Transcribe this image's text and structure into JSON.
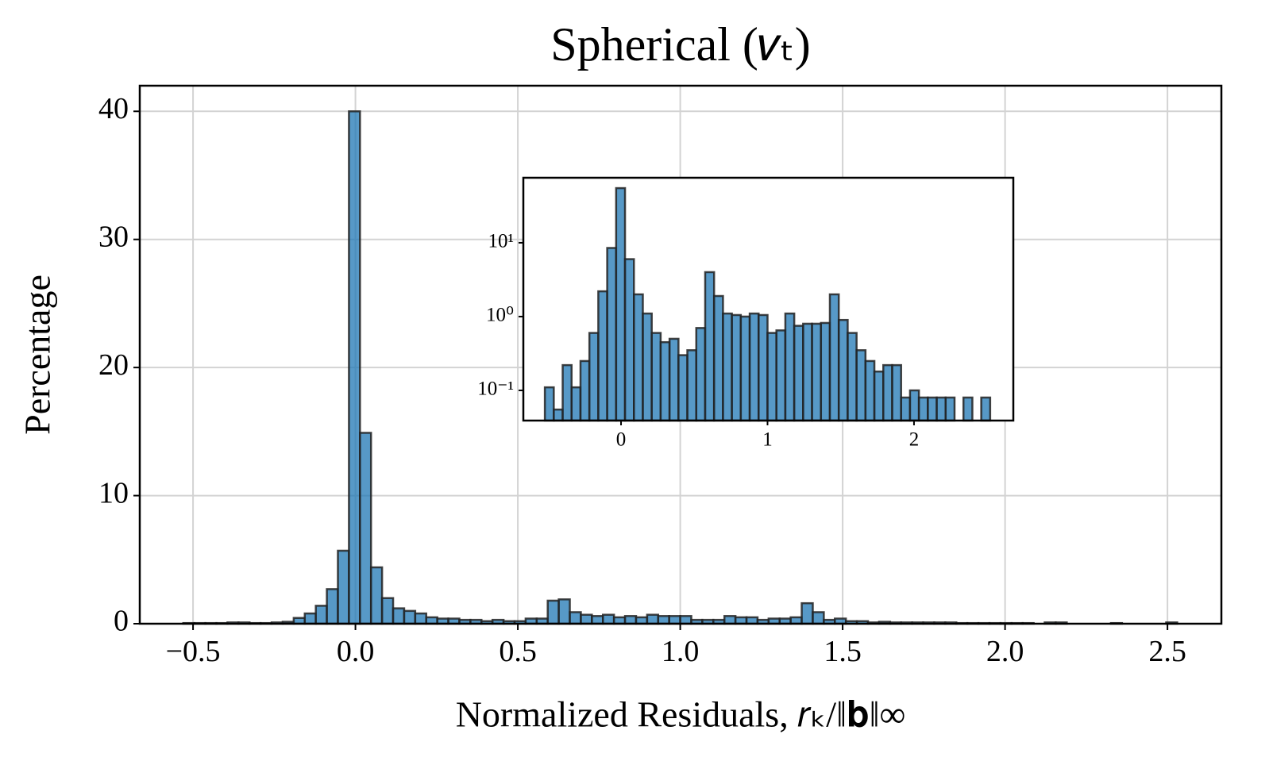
{
  "chart_data": [
    {
      "type": "histogram",
      "title": "Spherical (𝑣ₜ)",
      "xlabel": "Normalized Residuals, 𝑟ₖ/‖𝐛‖∞",
      "ylabel": "Percentage",
      "color": "#1f77b4",
      "edgecolor": "#222222",
      "grid": true,
      "log_y": false,
      "bins": [
        -0.53,
        -0.496,
        -0.462,
        -0.428,
        -0.394,
        -0.36,
        -0.326,
        -0.292,
        -0.258,
        -0.224,
        -0.19,
        -0.156,
        -0.122,
        -0.088,
        -0.054,
        -0.02,
        0.014,
        0.048,
        0.082,
        0.116,
        0.15,
        0.184,
        0.218,
        0.252,
        0.286,
        0.32,
        0.354,
        0.388,
        0.422,
        0.456,
        0.49,
        0.524,
        0.558,
        0.592,
        0.626,
        0.66,
        0.694,
        0.728,
        0.762,
        0.796,
        0.83,
        0.864,
        0.898,
        0.932,
        0.966,
        1.0,
        1.034,
        1.068,
        1.102,
        1.136,
        1.17,
        1.204,
        1.238,
        1.272,
        1.306,
        1.34,
        1.374,
        1.408,
        1.442,
        1.476,
        1.51,
        1.544,
        1.578,
        1.612,
        1.646,
        1.68,
        1.714,
        1.748,
        1.782,
        1.816,
        1.85,
        1.884,
        1.918,
        1.952,
        1.986,
        2.02,
        2.054,
        2.088,
        2.122,
        2.156,
        2.19,
        2.224,
        2.258,
        2.292,
        2.326,
        2.36,
        2.394,
        2.428,
        2.462,
        2.496,
        2.53
      ],
      "values": [
        0.05,
        0.05,
        0.05,
        0.05,
        0.1,
        0.1,
        0.05,
        0.05,
        0.1,
        0.15,
        0.45,
        0.8,
        1.4,
        2.7,
        5.7,
        40,
        14.9,
        4.4,
        2.0,
        1.2,
        1.0,
        0.8,
        0.5,
        0.4,
        0.4,
        0.3,
        0.3,
        0.2,
        0.3,
        0.2,
        0.2,
        0.4,
        0.4,
        1.8,
        1.9,
        0.9,
        0.7,
        0.6,
        0.7,
        0.5,
        0.6,
        0.5,
        0.7,
        0.6,
        0.6,
        0.6,
        0.3,
        0.3,
        0.3,
        0.6,
        0.5,
        0.5,
        0.3,
        0.4,
        0.4,
        0.5,
        1.6,
        0.9,
        0.3,
        0.4,
        0.2,
        0.2,
        0.1,
        0.15,
        0.1,
        0.1,
        0.1,
        0.1,
        0.1,
        0.1,
        0.05,
        0.05,
        0.05,
        0.05,
        0.05,
        0.05,
        0.05,
        0,
        0.1,
        0.1,
        0,
        0,
        0,
        0,
        0.05,
        0,
        0,
        0,
        0,
        0.1
      ],
      "xlim": [
        -0.664,
        2.666
      ],
      "ylim": [
        0,
        42
      ],
      "xticks": [
        {
          "value": -0.5,
          "label": "−0.5"
        },
        {
          "value": 0,
          "label": "0.0"
        },
        0.5,
        {
          "value": 1,
          "label": "1.0"
        },
        1.5,
        {
          "value": 2,
          "label": "2.0"
        },
        2.5
      ],
      "yticks": [
        0,
        10,
        20,
        30,
        40
      ]
    },
    {
      "type": "histogram",
      "color": "#1f77b4",
      "edgecolor": "#222222",
      "grid": false,
      "log_y": true,
      "bins": [
        -0.52,
        -0.4592,
        -0.3984,
        -0.3376,
        -0.2768,
        -0.216,
        -0.1552,
        -0.0944,
        -0.0336,
        0.0272,
        0.088,
        0.1488,
        0.2096,
        0.2704,
        0.3312,
        0.392,
        0.4528,
        0.5136,
        0.5744,
        0.6352,
        0.696,
        0.7568,
        0.8176,
        0.8784,
        0.9392,
        1.0,
        1.0608,
        1.1216,
        1.1824,
        1.2432,
        1.304,
        1.3648,
        1.4256,
        1.4864,
        1.5472,
        1.608,
        1.6688,
        1.7296,
        1.7904,
        1.8512,
        1.912,
        1.9728,
        2.0336,
        2.0944,
        2.1552,
        2.216,
        2.2768,
        2.3376,
        2.3984,
        2.4592,
        2.52
      ],
      "values": [
        0.11,
        0.055,
        0.22,
        0.11,
        0.25,
        0.6,
        2.2,
        8.5,
        55,
        6,
        2.0,
        1.1,
        0.6,
        0.45,
        0.5,
        0.3,
        0.35,
        0.7,
        4.0,
        1.9,
        1.1,
        1.05,
        1.0,
        1.1,
        1.05,
        0.6,
        0.65,
        1.1,
        0.75,
        0.8,
        0.8,
        0.82,
        2.0,
        0.9,
        0.6,
        0.35,
        0.25,
        0.18,
        0.22,
        0.22,
        0.08,
        0.1,
        0.08,
        0.08,
        0.08,
        0.08,
        0,
        0.08,
        0,
        0.08
      ],
      "xlim": [
        -0.667,
        2.678
      ],
      "ylim": [
        0.039,
        76
      ],
      "xticks": [
        0,
        1,
        2
      ],
      "yticks": [
        {
          "value": 0.1,
          "label": "10⁻¹"
        },
        {
          "value": 1,
          "label": "10⁰"
        },
        {
          "value": 10,
          "label": "10¹"
        }
      ]
    }
  ]
}
